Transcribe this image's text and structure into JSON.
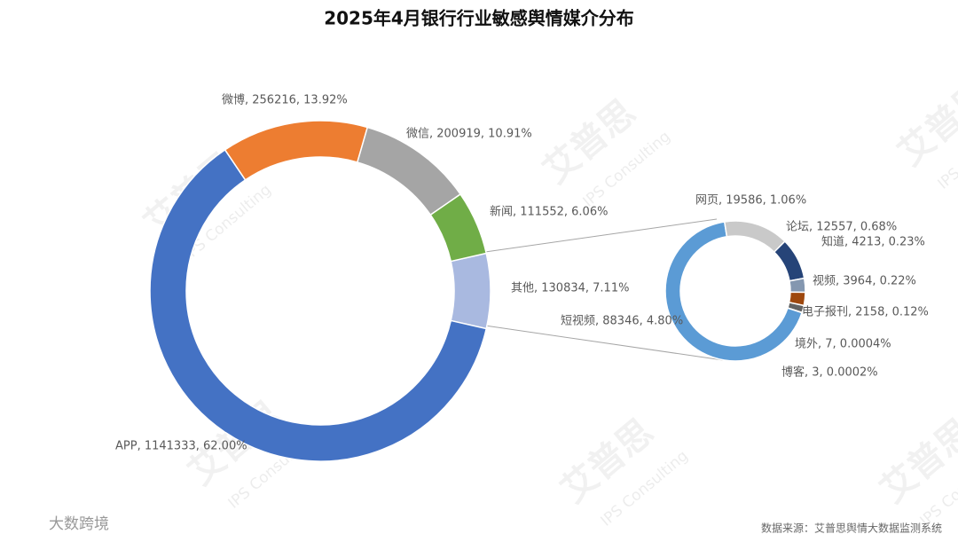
{
  "chart_data": [
    {
      "type": "doughnut",
      "title": "2025年4月银行行业敏感舆情媒介分布",
      "categories": [
        "其他",
        "APP",
        "微博",
        "微信",
        "新闻"
      ],
      "values": [
        130834,
        1141333,
        256216,
        200919,
        111552
      ],
      "value_labels": [
        "其他, 130834, 7.11%",
        "APP, 1141333, 62.00%",
        "微博, 256216, 13.92%",
        "微信, 200919, 10.91%",
        "新闻, 111552, 6.06%"
      ],
      "colors": [
        "#a9b9e0",
        "#4472c4",
        "#ed7d31",
        "#a5a5a5",
        "#70ad47"
      ]
    },
    {
      "type": "doughnut",
      "categories": [
        "短视频",
        "网页",
        "论坛",
        "知道",
        "视频",
        "电子报刊",
        "境外",
        "博客"
      ],
      "values": [
        88346,
        19586,
        12557,
        4213,
        3964,
        2158,
        7,
        3
      ],
      "value_labels": [
        "短视频, 88346, 4.80%",
        "网页, 19586, 1.06%",
        "论坛, 12557, 0.68%",
        "知道, 4213, 0.23%",
        "视频, 3964, 0.22%",
        "电子报刊, 2158, 0.12%",
        "境外, 7, 0.0004%",
        "博客, 3, 0.0002%"
      ],
      "colors": [
        "#5b9bd5",
        "#c9c9c9",
        "#264478",
        "#8497b0",
        "#9e480e",
        "#636363",
        "#f0b800",
        "#7fb2e0"
      ]
    }
  ],
  "watermark": {
    "brand": "艾普思",
    "subtitle": "IPS Consulting"
  },
  "logo": "大数跨境",
  "source": "数据来源：艾普思舆情大数据监测系统"
}
